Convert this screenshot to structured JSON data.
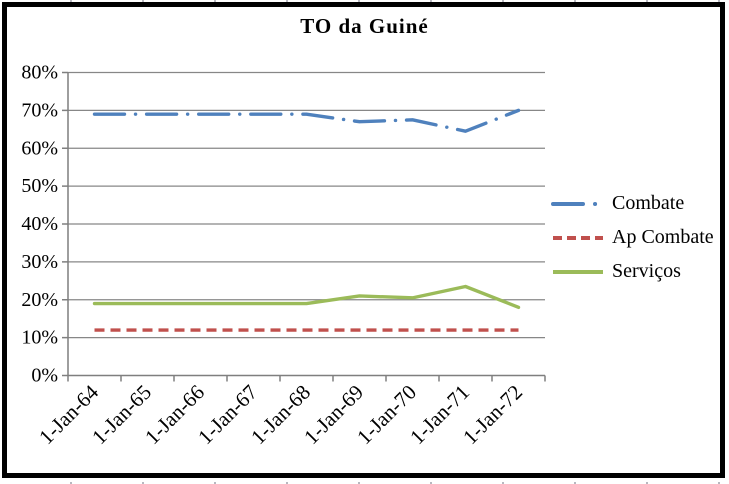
{
  "figure": {
    "background_color": "#ffffff",
    "border_color": "#000000"
  },
  "chart_data": {
    "type": "line",
    "title": "TO da Guiné",
    "categories": [
      "1-Jan-64",
      "1-Jan-65",
      "1-Jan-66",
      "1-Jan-67",
      "1-Jan-68",
      "1-Jan-69",
      "1-Jan-70",
      "1-Jan-71",
      "1-Jan-72"
    ],
    "series": [
      {
        "name": "Combate",
        "color": "#4F81BD",
        "style": "long-dash-dot",
        "values": [
          69,
          69,
          69,
          69,
          69,
          67,
          67.5,
          64.5,
          70
        ]
      },
      {
        "name": "Ap Combate",
        "color": "#C0504D",
        "style": "dash",
        "values": [
          12,
          12,
          12,
          12,
          12,
          12,
          12,
          12,
          12
        ]
      },
      {
        "name": "Serviços",
        "color": "#9BBB59",
        "style": "solid",
        "values": [
          19,
          19,
          19,
          19,
          19,
          21,
          20.5,
          23.5,
          18
        ]
      }
    ],
    "ylim": [
      0,
      80
    ],
    "ytick_step": 10,
    "ytick_labels": [
      "0%",
      "10%",
      "20%",
      "30%",
      "40%",
      "50%",
      "60%",
      "70%",
      "80%"
    ],
    "xlabel": "",
    "ylabel": "",
    "grid": true,
    "legend_position": "right",
    "axis_color": "#7f7f7f",
    "gridline_color": "#878787",
    "text_color": "#000000"
  }
}
